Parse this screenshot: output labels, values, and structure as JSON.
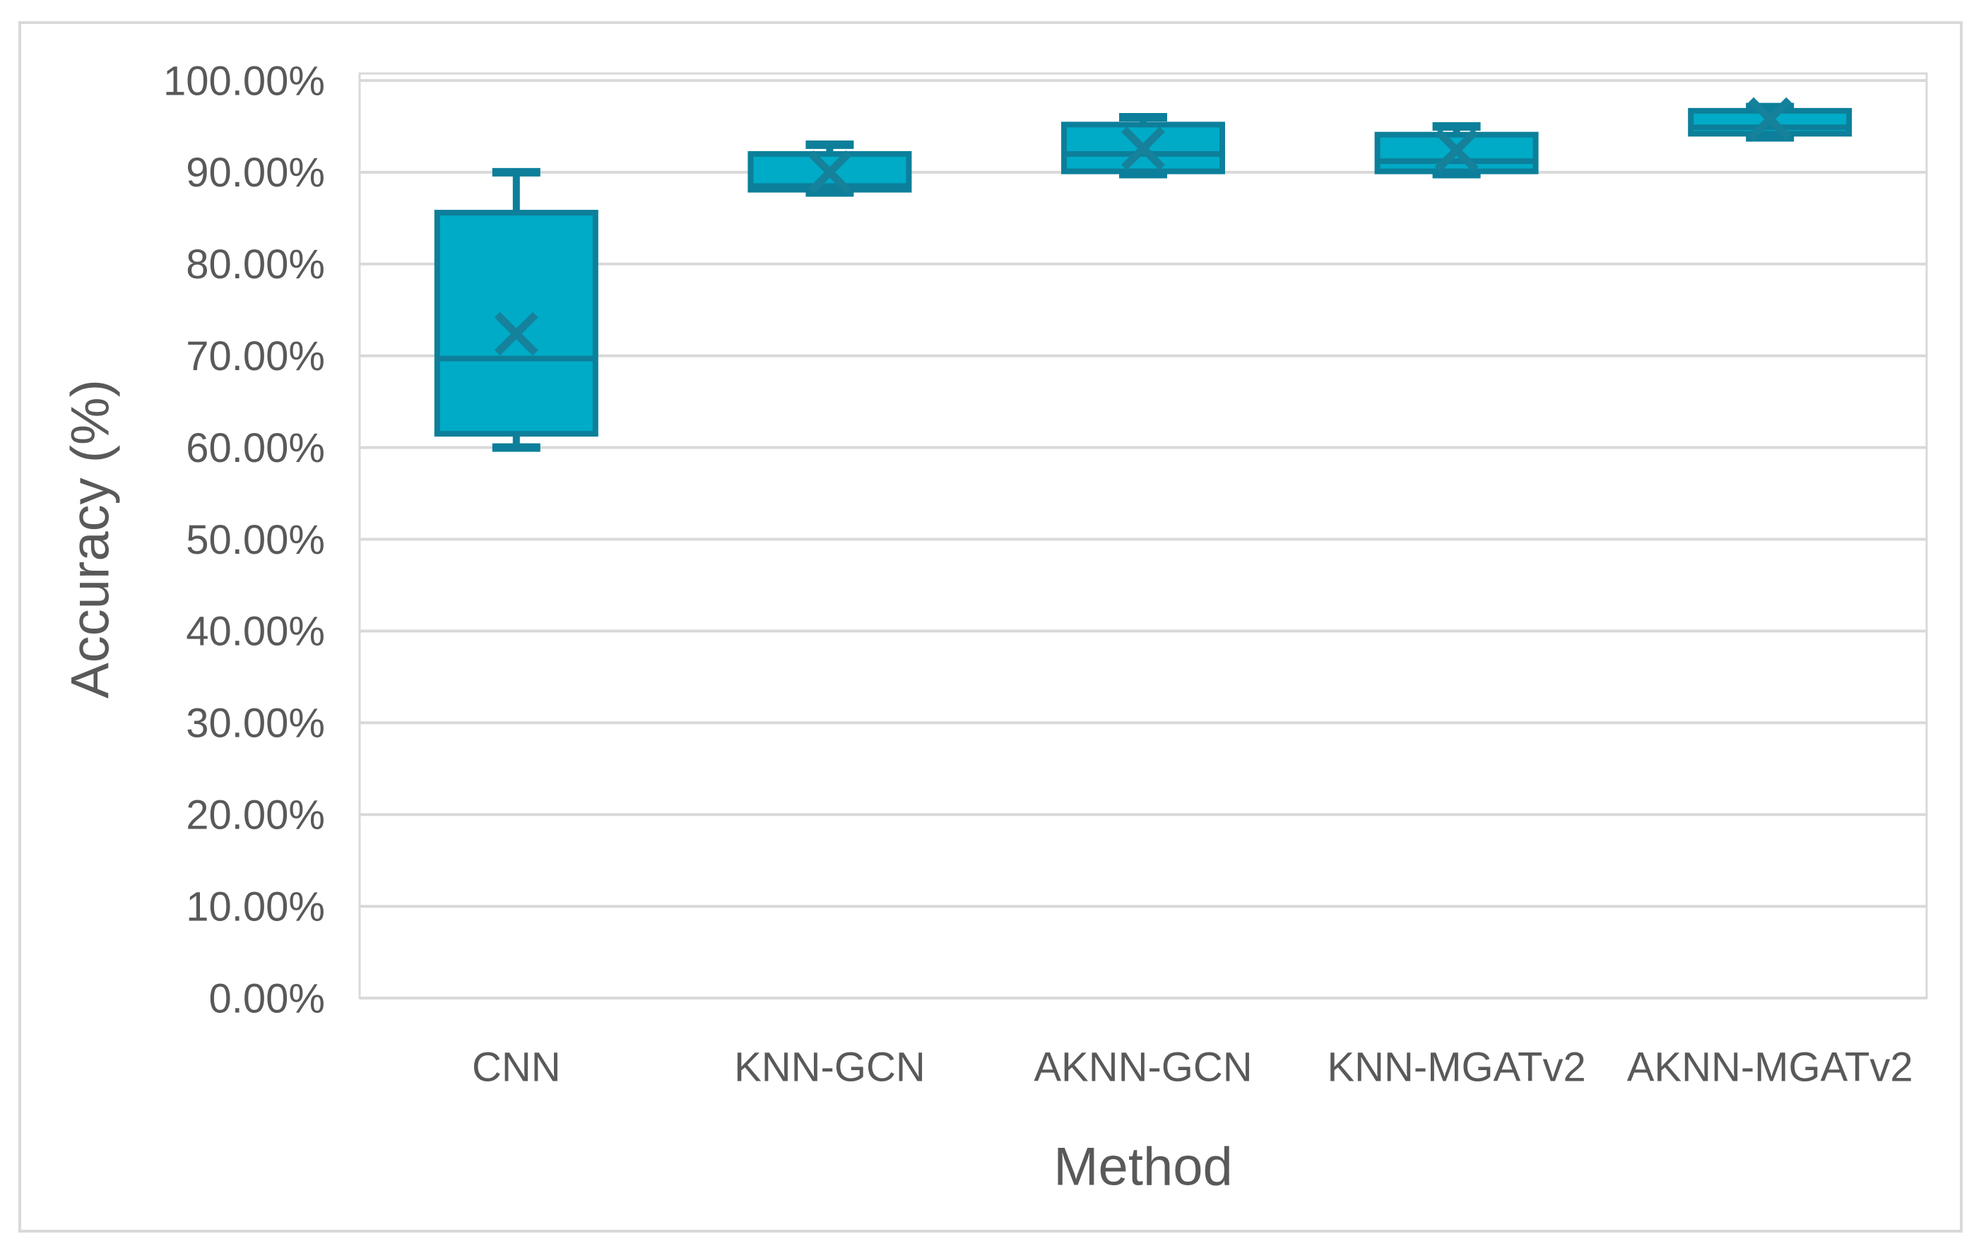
{
  "figure": {
    "background": "#FFFFFF",
    "border_color": "#D9D9D9"
  },
  "chart_data": {
    "type": "boxplot",
    "title": "",
    "xlabel": "Method",
    "ylabel": "Accuracy (%)",
    "categories": [
      "CNN",
      "KNN-GCN",
      "AKNN-GCN",
      "KNN-MGATv2",
      "AKNN-MGATv2"
    ],
    "series": [
      {
        "name": "CNN",
        "whisker_low": 60.0,
        "q1": 61.5,
        "median": 69.7,
        "q3": 85.6,
        "whisker_high": 90.0,
        "mean": 72.4
      },
      {
        "name": "KNN-GCN",
        "whisker_low": 87.8,
        "q1": 88.1,
        "median": 88.5,
        "q3": 92.0,
        "whisker_high": 93.0,
        "mean": 90.0
      },
      {
        "name": "AKNN-GCN",
        "whisker_low": 89.8,
        "q1": 90.1,
        "median": 92.0,
        "q3": 95.2,
        "whisker_high": 96.0,
        "mean": 92.6
      },
      {
        "name": "KNN-MGATv2",
        "whisker_low": 89.8,
        "q1": 90.1,
        "median": 91.2,
        "q3": 94.1,
        "whisker_high": 95.0,
        "mean": 92.4
      },
      {
        "name": "AKNN-MGATv2",
        "whisker_low": 93.8,
        "q1": 94.2,
        "median": 94.9,
        "q3": 96.7,
        "whisker_high": 97.1,
        "mean": 95.8
      }
    ],
    "ylim": [
      0,
      100
    ],
    "y_tick_step": 10,
    "y_tick_labels": [
      "0.00%",
      "10.00%",
      "20.00%",
      "30.00%",
      "40.00%",
      "50.00%",
      "60.00%",
      "70.00%",
      "80.00%",
      "90.00%",
      "100.00%"
    ],
    "grid": true,
    "legend_position": "none",
    "colors": {
      "box_fill": "#00ABC7",
      "box_stroke": "#0D7F9A",
      "mean_marker": "#15819B",
      "gridline": "#D9D9D9",
      "axis_text": "#595959"
    }
  }
}
